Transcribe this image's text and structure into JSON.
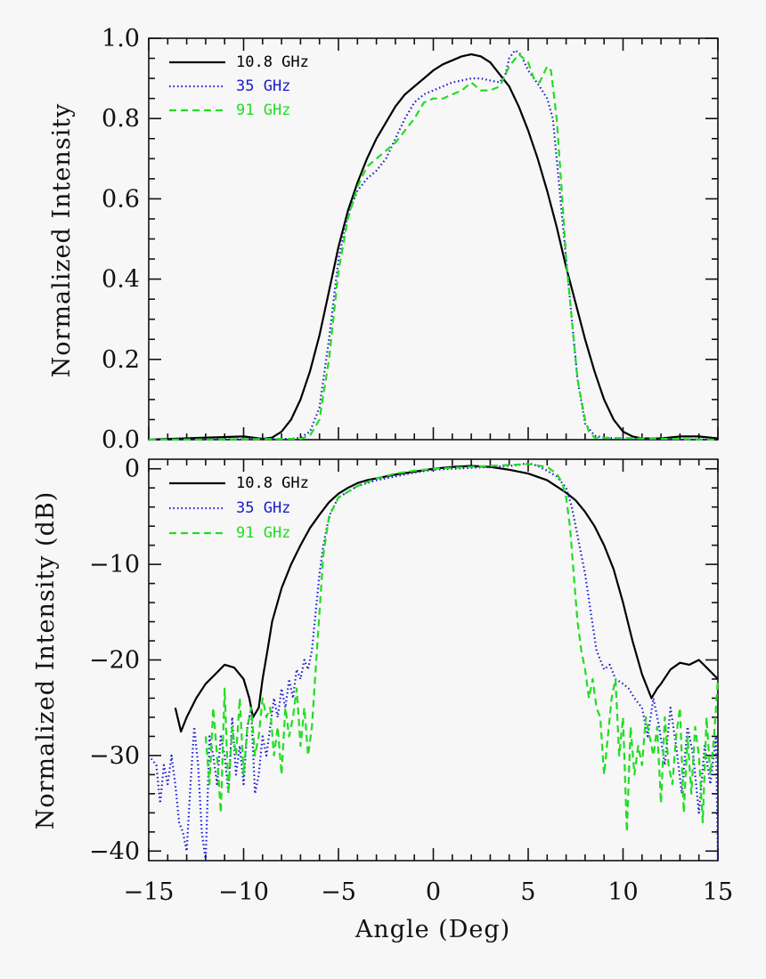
{
  "chart_data": [
    {
      "type": "line",
      "xlabel": "",
      "ylabel": "Normalized Intensity",
      "xlim": [
        -15,
        15
      ],
      "ylim": [
        0,
        1.0
      ],
      "yticks": [
        "0.0",
        "0.2",
        "0.4",
        "0.6",
        "0.8",
        "1.0"
      ],
      "legend_position": "top-left",
      "series": [
        {
          "name": "10.8 GHz",
          "color": "#000000",
          "style": "solid",
          "x": [
            -15,
            -12,
            -10,
            -9,
            -8.5,
            -8,
            -7.5,
            -7,
            -6.5,
            -6,
            -5.5,
            -5,
            -4.5,
            -4,
            -3.5,
            -3,
            -2.5,
            -2,
            -1.5,
            -1,
            -0.5,
            0,
            0.5,
            1,
            1.5,
            2,
            2.5,
            3,
            3.5,
            4,
            4.5,
            5,
            5.5,
            6,
            6.5,
            7,
            7.5,
            8,
            8.5,
            9,
            9.5,
            10,
            10.5,
            11,
            12,
            13,
            14,
            15
          ],
          "y": [
            0,
            0.005,
            0.008,
            0.002,
            0.005,
            0.02,
            0.05,
            0.1,
            0.17,
            0.26,
            0.37,
            0.48,
            0.57,
            0.64,
            0.7,
            0.75,
            0.79,
            0.83,
            0.86,
            0.88,
            0.9,
            0.92,
            0.935,
            0.945,
            0.955,
            0.96,
            0.955,
            0.94,
            0.91,
            0.88,
            0.83,
            0.77,
            0.7,
            0.62,
            0.53,
            0.43,
            0.34,
            0.25,
            0.17,
            0.1,
            0.05,
            0.02,
            0.008,
            0.003,
            0.003,
            0.008,
            0.008,
            0.003
          ]
        },
        {
          "name": "35 GHz",
          "color": "#1a1acc",
          "style": "dotted",
          "x": [
            -15,
            -7.5,
            -7,
            -6.5,
            -6,
            -5.5,
            -5,
            -4.5,
            -4,
            -3.5,
            -3,
            -2.5,
            -2,
            -1.5,
            -1,
            -0.5,
            0,
            0.5,
            1,
            1.5,
            2,
            2.5,
            3,
            3.5,
            3.8,
            4,
            4.3,
            4.6,
            5,
            5.3,
            5.6,
            6,
            6.3,
            6.5,
            6.8,
            7,
            7.3,
            7.6,
            8,
            8.5,
            9,
            10,
            11,
            15
          ],
          "y": [
            0,
            0.002,
            0.005,
            0.02,
            0.08,
            0.25,
            0.45,
            0.56,
            0.62,
            0.65,
            0.67,
            0.7,
            0.75,
            0.8,
            0.84,
            0.86,
            0.87,
            0.88,
            0.89,
            0.895,
            0.9,
            0.9,
            0.895,
            0.89,
            0.91,
            0.95,
            0.97,
            0.96,
            0.92,
            0.9,
            0.88,
            0.85,
            0.8,
            0.7,
            0.55,
            0.45,
            0.3,
            0.15,
            0.04,
            0.01,
            0.005,
            0.002,
            0.001,
            0
          ]
        },
        {
          "name": "91 GHz",
          "color": "#22dd22",
          "style": "dashed",
          "x": [
            -15,
            -7,
            -6.5,
            -6,
            -5.5,
            -5,
            -4.5,
            -4,
            -3.5,
            -3,
            -2.5,
            -2,
            -1.5,
            -1,
            -0.5,
            0,
            0.5,
            1,
            1.5,
            2,
            2.5,
            3,
            3.5,
            4,
            4.5,
            5,
            5.3,
            5.6,
            6,
            6.2,
            6.5,
            6.8,
            7,
            7.3,
            7.6,
            8,
            8.2,
            8.5,
            15
          ],
          "y": [
            0,
            0.002,
            0.01,
            0.05,
            0.2,
            0.42,
            0.55,
            0.63,
            0.68,
            0.7,
            0.72,
            0.74,
            0.77,
            0.8,
            0.84,
            0.85,
            0.85,
            0.86,
            0.87,
            0.89,
            0.87,
            0.87,
            0.88,
            0.93,
            0.96,
            0.94,
            0.9,
            0.89,
            0.93,
            0.92,
            0.8,
            0.6,
            0.45,
            0.3,
            0.15,
            0.05,
            0.02,
            0.005,
            0
          ]
        }
      ]
    },
    {
      "type": "line",
      "xlabel": "Angle (Deg)",
      "ylabel": "Normalized Intensity (dB)",
      "xlim": [
        -15,
        15
      ],
      "ylim": [
        -41,
        1
      ],
      "xticks": [
        "−15",
        "−10",
        "−5",
        "0",
        "5",
        "10",
        "15"
      ],
      "yticks": [
        "0",
        "−10",
        "−20",
        "−30",
        "−40"
      ],
      "legend_position": "top-left",
      "series": [
        {
          "name": "10.8 GHz",
          "color": "#000000",
          "style": "solid",
          "x": [
            -13.6,
            -13.3,
            -13,
            -12.5,
            -12,
            -11.5,
            -11,
            -10.5,
            -10,
            -9.7,
            -9.5,
            -9.2,
            -9,
            -8.7,
            -8.5,
            -8,
            -7.5,
            -7,
            -6.5,
            -6,
            -5.5,
            -5,
            -4.5,
            -4,
            -3.5,
            -3,
            -2,
            -1,
            0,
            1,
            2,
            3,
            4,
            5,
            6,
            7,
            7.5,
            8,
            8.5,
            9,
            9.5,
            10,
            10.5,
            11,
            11.5,
            11.8,
            12,
            12.5,
            13,
            13.5,
            14,
            14.5,
            15
          ],
          "y": [
            -25,
            -27.5,
            -26,
            -24,
            -22.5,
            -21.5,
            -20.5,
            -20.8,
            -22,
            -24,
            -26,
            -25,
            -22,
            -18.5,
            -16,
            -12.5,
            -10,
            -8,
            -6.2,
            -4.8,
            -3.5,
            -2.6,
            -2,
            -1.5,
            -1.2,
            -1,
            -0.6,
            -0.3,
            0,
            0.2,
            0.3,
            0.2,
            -0.1,
            -0.5,
            -1.2,
            -2.5,
            -3.3,
            -4.5,
            -6,
            -8,
            -10.5,
            -14,
            -18,
            -21.5,
            -24,
            -23,
            -22.5,
            -21,
            -20.3,
            -20.5,
            -20,
            -21,
            -22
          ]
        },
        {
          "name": "35 GHz",
          "color": "#1a1acc",
          "style": "dotted",
          "x": [
            -15,
            -14.6,
            -14.4,
            -14.2,
            -14,
            -13.8,
            -13.6,
            -13.4,
            -13.2,
            -13,
            -12.8,
            -12.6,
            -12.4,
            -12.2,
            -12,
            -11.8,
            -11.6,
            -11.4,
            -11.2,
            -11,
            -10.8,
            -10.6,
            -10.4,
            -10.2,
            -10,
            -9.8,
            -9.6,
            -9.4,
            -9.2,
            -9,
            -8.8,
            -8.6,
            -8.4,
            -8.2,
            -8,
            -7.8,
            -7.6,
            -7.4,
            -7.2,
            -7,
            -6.8,
            -6.6,
            -6.4,
            -6.2,
            -6,
            -5.8,
            -5.6,
            -5.4,
            -5,
            -4,
            -3,
            -2,
            -1,
            0,
            1,
            2,
            3,
            4,
            4.5,
            5,
            5.5,
            6,
            6.5,
            7,
            7.3,
            7.6,
            8,
            8.3,
            8.6,
            9,
            9.3,
            9.6,
            10,
            10.3,
            10.6,
            11,
            11.3,
            11.6,
            11.9,
            12.2,
            12.5,
            12.8,
            13.1,
            13.4,
            13.7,
            14,
            14.3,
            14.6,
            14.9,
            15
          ],
          "y": [
            -30,
            -31,
            -35,
            -31,
            -33,
            -30,
            -33,
            -37,
            -38,
            -40,
            -33,
            -27,
            -31,
            -38,
            -41,
            -28,
            -30,
            -33,
            -28,
            -30,
            -34,
            -26,
            -32,
            -29,
            -33,
            -27,
            -25,
            -34,
            -32,
            -28,
            -30,
            -27,
            -24,
            -26,
            -23,
            -25,
            -22,
            -24,
            -21,
            -22,
            -20,
            -21,
            -19,
            -15,
            -11,
            -8,
            -6,
            -4.5,
            -3,
            -1.8,
            -1.2,
            -0.8,
            -0.4,
            -0.1,
            0,
            0.1,
            0.2,
            0.3,
            0.4,
            0.6,
            0.3,
            -0.2,
            -0.8,
            -2,
            -4,
            -7,
            -11,
            -15,
            -19,
            -21,
            -20.5,
            -22,
            -22.5,
            -23,
            -24,
            -25,
            -28,
            -24,
            -27,
            -31,
            -25,
            -29,
            -34,
            -27,
            -30,
            -36,
            -29,
            -33,
            -28,
            -41
          ]
        },
        {
          "name": "91 GHz",
          "color": "#22dd22",
          "style": "dashed",
          "x": [
            -12,
            -11.8,
            -11.6,
            -11.4,
            -11.2,
            -11,
            -10.8,
            -10.6,
            -10.4,
            -10.2,
            -10,
            -9.8,
            -9.6,
            -9.4,
            -9.2,
            -9,
            -8.8,
            -8.6,
            -8.4,
            -8.2,
            -8,
            -7.8,
            -7.6,
            -7.4,
            -7.2,
            -7,
            -6.8,
            -6.6,
            -6.4,
            -6.2,
            -6,
            -5.8,
            -5.5,
            -5,
            -4,
            -3,
            -2,
            -1,
            0,
            1,
            2,
            3,
            4,
            5,
            6,
            6.5,
            6.8,
            7,
            7.2,
            7.4,
            7.6,
            7.8,
            8,
            8.2,
            8.4,
            8.6,
            8.8,
            9,
            9.2,
            9.4,
            9.6,
            9.8,
            10,
            10.2,
            10.4,
            10.6,
            10.8,
            11,
            11.2,
            11.4,
            11.6,
            11.8,
            12,
            12.2,
            12.4,
            12.6,
            12.8,
            13,
            13.2,
            13.4,
            13.6,
            13.8,
            14,
            14.2,
            14.4,
            14.6,
            14.8,
            15
          ],
          "y": [
            -28,
            -33,
            -25,
            -30,
            -36,
            -23,
            -34,
            -27,
            -30,
            -24,
            -32,
            -27,
            -25,
            -30,
            -28,
            -24,
            -26,
            -25,
            -30,
            -27,
            -32,
            -25,
            -28,
            -26,
            -23,
            -29,
            -25,
            -30,
            -27,
            -21,
            -15,
            -9,
            -5,
            -3,
            -1.8,
            -1,
            -0.5,
            -0.2,
            0,
            0.1,
            0.2,
            0.3,
            0.4,
            0.5,
            0.2,
            -0.5,
            -1.5,
            -3,
            -6,
            -11,
            -16,
            -19,
            -21,
            -24,
            -22,
            -25,
            -26,
            -32,
            -28,
            -24,
            -22,
            -30,
            -26,
            -38,
            -27,
            -32,
            -29,
            -31,
            -26,
            -28,
            -30,
            -27,
            -35,
            -26,
            -31,
            -33,
            -28,
            -25,
            -36,
            -28,
            -34,
            -27,
            -30,
            -37,
            -26,
            -32,
            -28,
            -22
          ]
        }
      ]
    }
  ]
}
